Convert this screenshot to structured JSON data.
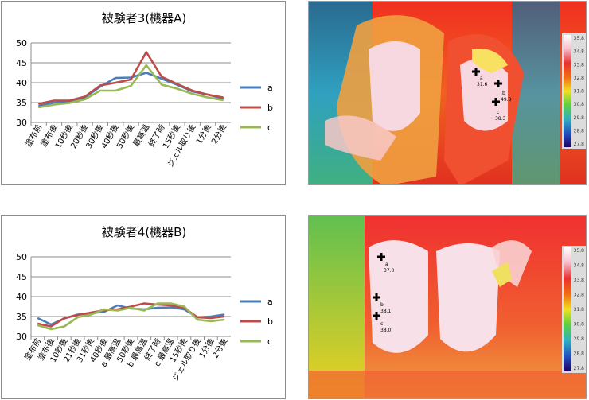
{
  "chart_data": [
    {
      "type": "line",
      "title": "被験者3(機器A)",
      "categories": [
        "塗布前",
        "塗布後",
        "10秒後",
        "20秒後",
        "30秒後",
        "40秒後",
        "50秒後",
        "最高温",
        "終了時",
        "15秒後",
        "ジェル取り後",
        "1分後",
        "2分後"
      ],
      "ylim": [
        30,
        50
      ],
      "yticks": [
        30,
        35,
        40,
        45,
        50
      ],
      "grid": true,
      "legend": "right",
      "series": [
        {
          "name": "a",
          "color": "#4a7ebb",
          "values": [
            34.2,
            35.0,
            35.2,
            36.3,
            39.0,
            41.2,
            41.3,
            42.5,
            41.0,
            39.5,
            37.8,
            37.0,
            36.0
          ]
        },
        {
          "name": "b",
          "color": "#be4b48",
          "values": [
            34.7,
            35.5,
            35.5,
            36.5,
            39.3,
            40.0,
            40.8,
            47.7,
            41.5,
            39.7,
            38.0,
            37.0,
            36.3
          ]
        },
        {
          "name": "c",
          "color": "#98b954",
          "values": [
            33.8,
            34.5,
            34.9,
            35.8,
            38.0,
            38.0,
            39.2,
            44.4,
            39.5,
            38.5,
            37.2,
            36.3,
            35.6
          ]
        }
      ]
    },
    {
      "type": "line",
      "title": "被験者4(機器B)",
      "categories": [
        "塗布前",
        "塗布後",
        "10秒後",
        "21秒後",
        "31秒後",
        "40秒後",
        "a 最高温",
        "50秒後",
        "b 最高温",
        "終了時",
        "c 最高温",
        "15秒後",
        "ジェル取り後",
        "1分後",
        "2分後"
      ],
      "ylim": [
        30,
        50
      ],
      "yticks": [
        30,
        35,
        40,
        45,
        50
      ],
      "grid": true,
      "legend": "right",
      "series": [
        {
          "name": "a",
          "color": "#4a7ebb",
          "values": [
            34.6,
            33.0,
            34.5,
            35.5,
            35.8,
            36.2,
            37.8,
            37.0,
            36.8,
            37.2,
            37.3,
            36.8,
            34.8,
            35.0,
            35.5
          ]
        },
        {
          "name": "b",
          "color": "#be4b48",
          "values": [
            33.2,
            32.5,
            34.6,
            35.4,
            36.0,
            36.6,
            36.8,
            37.5,
            38.3,
            38.0,
            37.8,
            37.2,
            34.8,
            34.6,
            35.0
          ]
        },
        {
          "name": "c",
          "color": "#98b954",
          "values": [
            32.8,
            31.8,
            32.5,
            34.8,
            35.5,
            36.8,
            36.5,
            37.2,
            36.5,
            38.3,
            38.3,
            37.5,
            34.2,
            33.8,
            34.2
          ]
        }
      ]
    }
  ],
  "thermal_images": [
    {
      "scale": [
        "35.8",
        "34.8",
        "33.8",
        "32.8",
        "31.8",
        "30.8",
        "29.8",
        "28.8",
        "27.8"
      ],
      "markers": [
        {
          "label": "a",
          "value": "31.6"
        },
        {
          "label": "b",
          "value": "49.8"
        },
        {
          "label": "c",
          "value": "38.3"
        }
      ]
    },
    {
      "scale": [
        "35.8",
        "34.8",
        "33.8",
        "32.8",
        "31.8",
        "30.8",
        "29.8",
        "28.8",
        "27.8"
      ],
      "markers": [
        {
          "label": "a",
          "value": "37.0"
        },
        {
          "label": "b",
          "value": "38.1"
        },
        {
          "label": "c",
          "value": "38.0"
        }
      ]
    }
  ]
}
